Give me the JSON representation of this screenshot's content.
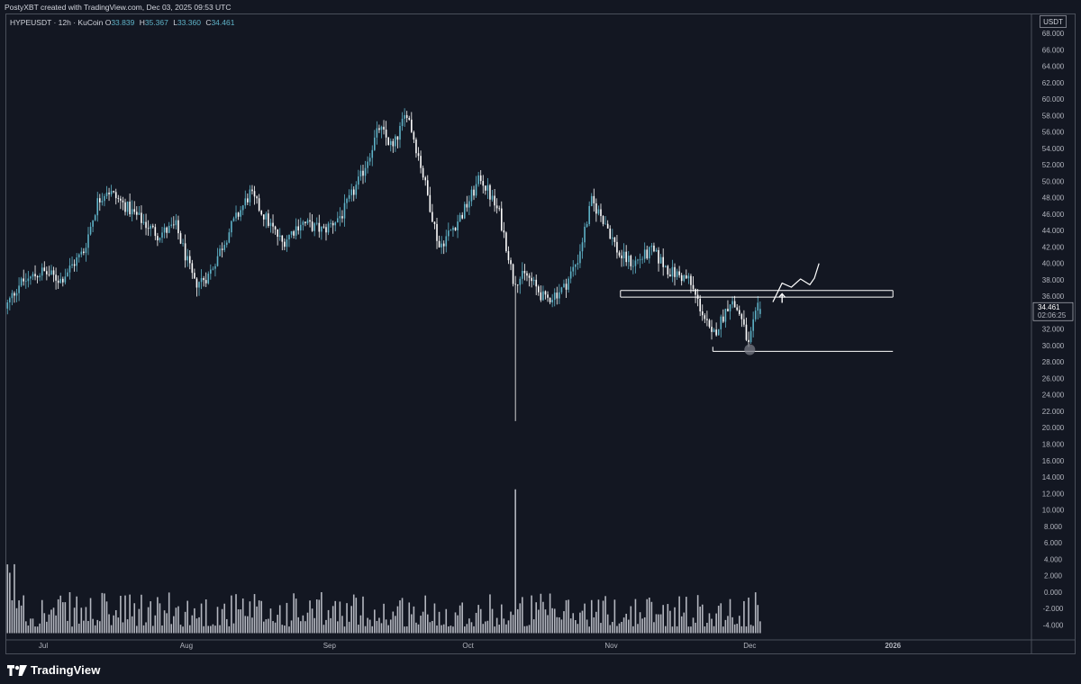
{
  "header": {
    "credit": "PostyXBT created with TradingView.com, Dec 03, 2025 09:53 UTC"
  },
  "legend": {
    "symbol": "HYPEUSDT · 12h · KuCoin",
    "open_label": "O",
    "open": "33.839",
    "high_label": "H",
    "high": "35.367",
    "low_label": "L",
    "low": "33.360",
    "close_label": "C",
    "close": "34.461"
  },
  "price_axis": {
    "currency": "USDT",
    "ticks": [
      "68.000",
      "66.000",
      "64.000",
      "62.000",
      "60.000",
      "58.000",
      "56.000",
      "54.000",
      "52.000",
      "50.000",
      "48.000",
      "46.000",
      "44.000",
      "42.000",
      "40.000",
      "38.000",
      "36.000",
      "34.000",
      "32.000",
      "30.000",
      "28.000",
      "26.000",
      "24.000",
      "22.000",
      "20.000",
      "18.000",
      "16.000",
      "14.000",
      "12.000",
      "10.000",
      "8.000",
      "6.000",
      "4.000",
      "2.000",
      "0.000",
      "-2.000",
      "-4.000"
    ],
    "last_price": "34.461",
    "countdown": "02:06:25"
  },
  "time_axis": {
    "labels": [
      "Jul",
      "Aug",
      "Sep",
      "Oct",
      "Nov",
      "Dec",
      "2026"
    ]
  },
  "chart_data": {
    "type": "candlestick",
    "symbol": "HYPEUSDT",
    "interval": "12h",
    "exchange": "KuCoin",
    "x_start": "2025-06-23",
    "x_end": "2026-01-31",
    "ylim": [
      -5.5,
      69
    ],
    "y_ticks": [
      68,
      66,
      64,
      62,
      60,
      58,
      56,
      54,
      52,
      50,
      48,
      46,
      44,
      42,
      40,
      38,
      36,
      34,
      32,
      30,
      28,
      26,
      24,
      22,
      20,
      18,
      16,
      14,
      12,
      10,
      8,
      6,
      4,
      2,
      0,
      -2,
      -4
    ],
    "price_path": [
      [
        "2025-06-23",
        34.5
      ],
      [
        "2025-06-26",
        37.5
      ],
      [
        "2025-07-01",
        39.0
      ],
      [
        "2025-07-05",
        38.0
      ],
      [
        "2025-07-10",
        41.5
      ],
      [
        "2025-07-13",
        47.5
      ],
      [
        "2025-07-15",
        49.0
      ],
      [
        "2025-07-19",
        47.0
      ],
      [
        "2025-07-23",
        45.0
      ],
      [
        "2025-07-26",
        43.5
      ],
      [
        "2025-07-30",
        44.5
      ],
      [
        "2025-08-03",
        37.5
      ],
      [
        "2025-08-06",
        38.5
      ],
      [
        "2025-08-11",
        44.5
      ],
      [
        "2025-08-15",
        48.5
      ],
      [
        "2025-08-19",
        45.0
      ],
      [
        "2025-08-22",
        42.5
      ],
      [
        "2025-08-26",
        45.0
      ],
      [
        "2025-08-31",
        44.0
      ],
      [
        "2025-09-04",
        46.0
      ],
      [
        "2025-09-08",
        50.5
      ],
      [
        "2025-09-12",
        56.5
      ],
      [
        "2025-09-15",
        54.0
      ],
      [
        "2025-09-18",
        58.5
      ],
      [
        "2025-09-21",
        52.0
      ],
      [
        "2025-09-25",
        42.0
      ],
      [
        "2025-09-30",
        46.0
      ],
      [
        "2025-10-04",
        50.5
      ],
      [
        "2025-10-08",
        46.0
      ],
      [
        "2025-10-10",
        41.0
      ],
      [
        "2025-10-11",
        38.0
      ],
      [
        "2025-10-14",
        38.5
      ],
      [
        "2025-10-18",
        35.5
      ],
      [
        "2025-10-22",
        37.0
      ],
      [
        "2025-10-25",
        40.5
      ],
      [
        "2025-10-28",
        47.5
      ],
      [
        "2025-10-31",
        45.0
      ],
      [
        "2025-11-03",
        41.0
      ],
      [
        "2025-11-06",
        40.0
      ],
      [
        "2025-11-10",
        41.5
      ],
      [
        "2025-11-14",
        39.0
      ],
      [
        "2025-11-18",
        38.0
      ],
      [
        "2025-11-21",
        34.0
      ],
      [
        "2025-11-23",
        31.0
      ],
      [
        "2025-11-25",
        33.0
      ],
      [
        "2025-11-27",
        35.5
      ],
      [
        "2025-11-29",
        34.0
      ],
      [
        "2025-12-01",
        30.0
      ],
      [
        "2025-12-02",
        32.5
      ],
      [
        "2025-12-03",
        34.461
      ]
    ],
    "wick_low_event": {
      "date": "2025-10-11",
      "low": 20.8
    },
    "volume_spike_date": "2025-10-11",
    "drawings": {
      "resistance_zone": {
        "top": 36.7,
        "bottom": 35.9,
        "from": "2025-11-03",
        "to": "2026-01-01"
      },
      "support_line": {
        "price": 29.3,
        "from": "2025-11-23",
        "to": "2026-01-01"
      },
      "marked_low": {
        "date": "2025-12-01",
        "price": 29.5
      },
      "projection_arrow": {
        "date": "2025-12-08",
        "price": 35.2
      },
      "projection_path": [
        [
          "2025-12-06",
          35.3
        ],
        [
          "2025-12-08",
          37.6
        ],
        [
          "2025-12-10",
          37.1
        ],
        [
          "2025-12-12",
          38.1
        ],
        [
          "2025-12-14",
          37.4
        ],
        [
          "2025-12-15",
          38.2
        ],
        [
          "2025-12-16",
          40.0
        ]
      ]
    },
    "colors": {
      "background": "#131722",
      "up_candle": "#5fb3c8",
      "down_candle": "#ffffff",
      "drawings": "#ffffff",
      "volume": "#d1d4dc"
    }
  }
}
